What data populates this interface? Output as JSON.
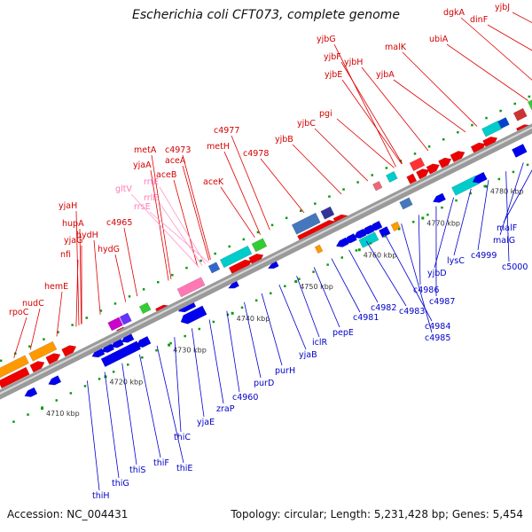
{
  "title": "Escherichia coli CFT073, complete genome",
  "accession": "Accession: NC_004431",
  "summary": "Topology: circular; Length: 5,231,428 bp; Genes: 5,454",
  "colors": {
    "forward_strand": "#ee0000",
    "reverse_strand": "#0000ee",
    "rna": "#ff78b4",
    "backbone": "#888888",
    "tick": "#119911"
  },
  "kbp_labels": [
    "4710 kbp",
    "4720 kbp",
    "4730 kbp",
    "4740 kbp",
    "4750 kbp",
    "4760 kbp",
    "4770 kbp",
    "4780 kbp"
  ],
  "top_labels": [
    {
      "text": "rpoC"
    },
    {
      "text": "nudC"
    },
    {
      "text": "hemE"
    },
    {
      "text": "nfi"
    },
    {
      "text": "yjaG"
    },
    {
      "text": "hupA"
    },
    {
      "text": "yjaH"
    },
    {
      "text": "hydH"
    },
    {
      "text": "hydG"
    },
    {
      "text": "c4965"
    },
    {
      "text": "yjaA"
    },
    {
      "text": "metA"
    },
    {
      "text": "aceB"
    },
    {
      "text": "aceA"
    },
    {
      "text": "c4973"
    },
    {
      "text": "aceK"
    },
    {
      "text": "metH"
    },
    {
      "text": "c4977"
    },
    {
      "text": "c4978"
    },
    {
      "text": "yjbB"
    },
    {
      "text": "yjbC"
    },
    {
      "text": "pgi"
    },
    {
      "text": "yjbE"
    },
    {
      "text": "yjbF"
    },
    {
      "text": "yjbG"
    },
    {
      "text": "yjbH"
    },
    {
      "text": "yjbA"
    },
    {
      "text": "malK"
    },
    {
      "text": "ubiA"
    },
    {
      "text": "dgkA"
    },
    {
      "text": "dinF"
    },
    {
      "text": "yjbJ"
    }
  ],
  "rna_labels": [
    {
      "text": "gltV"
    },
    {
      "text": "rrlE"
    },
    {
      "text": "rrfE"
    },
    {
      "text": "rrsE"
    }
  ],
  "bottom_labels": [
    {
      "text": "thiH"
    },
    {
      "text": "thiG"
    },
    {
      "text": "thiS"
    },
    {
      "text": "thiF"
    },
    {
      "text": "thiE"
    },
    {
      "text": "thiC"
    },
    {
      "text": "yjaE"
    },
    {
      "text": "zraP"
    },
    {
      "text": "c4960"
    },
    {
      "text": "purD"
    },
    {
      "text": "purH"
    },
    {
      "text": "yjaB"
    },
    {
      "text": "iclR"
    },
    {
      "text": "pepE"
    },
    {
      "text": "c4981"
    },
    {
      "text": "c4982"
    },
    {
      "text": "c4983"
    },
    {
      "text": "c4984"
    },
    {
      "text": "c4985"
    },
    {
      "text": "c4986"
    },
    {
      "text": "c4987"
    },
    {
      "text": "yjbD"
    },
    {
      "text": "lysC"
    },
    {
      "text": "c4999"
    },
    {
      "text": "c5000"
    },
    {
      "text": "malG"
    },
    {
      "text": "malF"
    }
  ]
}
